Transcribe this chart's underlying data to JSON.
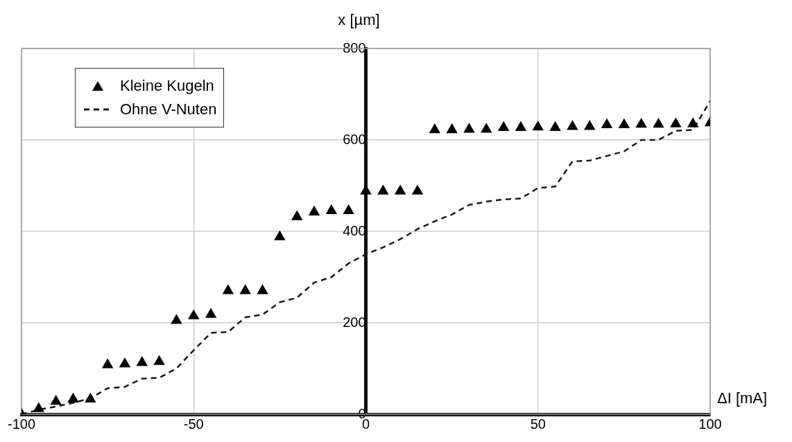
{
  "chart_data": {
    "type": "line",
    "xlabel": "ΔI [mA]",
    "ylabel": "x [µm]",
    "x": [
      -100,
      -95,
      -90,
      -85,
      -80,
      -75,
      -70,
      -65,
      -60,
      -55,
      -50,
      -45,
      -40,
      -35,
      -30,
      -25,
      -20,
      -15,
      -10,
      -5,
      0,
      5,
      10,
      15,
      20,
      25,
      30,
      35,
      40,
      45,
      50,
      55,
      60,
      65,
      70,
      75,
      80,
      85,
      90,
      95,
      100
    ],
    "series": [
      {
        "name": "Kleine Kugeln",
        "type": "scatter",
        "marker": "triangle",
        "color": "#000000",
        "values": [
          0,
          12,
          28,
          33,
          33,
          108,
          110,
          113,
          115,
          205,
          215,
          218,
          270,
          270,
          270,
          388,
          432,
          442,
          445,
          445,
          488,
          488,
          488,
          488,
          622,
          622,
          623,
          623,
          627,
          627,
          628,
          627,
          629,
          629,
          633,
          633,
          634,
          634,
          635,
          635,
          637
        ]
      },
      {
        "name": "Ohne V-Nuten",
        "type": "line",
        "marker": "none",
        "line_style": "dashed",
        "color": "#1a1a1a",
        "values": [
          0,
          10,
          17,
          25,
          35,
          57,
          60,
          78,
          80,
          100,
          140,
          178,
          180,
          212,
          218,
          245,
          255,
          288,
          300,
          330,
          350,
          365,
          383,
          405,
          422,
          437,
          458,
          465,
          470,
          472,
          495,
          498,
          553,
          555,
          565,
          575,
          600,
          600,
          620,
          622,
          685
        ]
      }
    ],
    "xlim": [
      -100,
      100
    ],
    "xticks": [
      -100,
      -50,
      0,
      50,
      100
    ],
    "ylim": [
      0,
      800
    ],
    "yticks": [
      0,
      200,
      400,
      600,
      800
    ],
    "grid": true,
    "legend": "top left"
  }
}
